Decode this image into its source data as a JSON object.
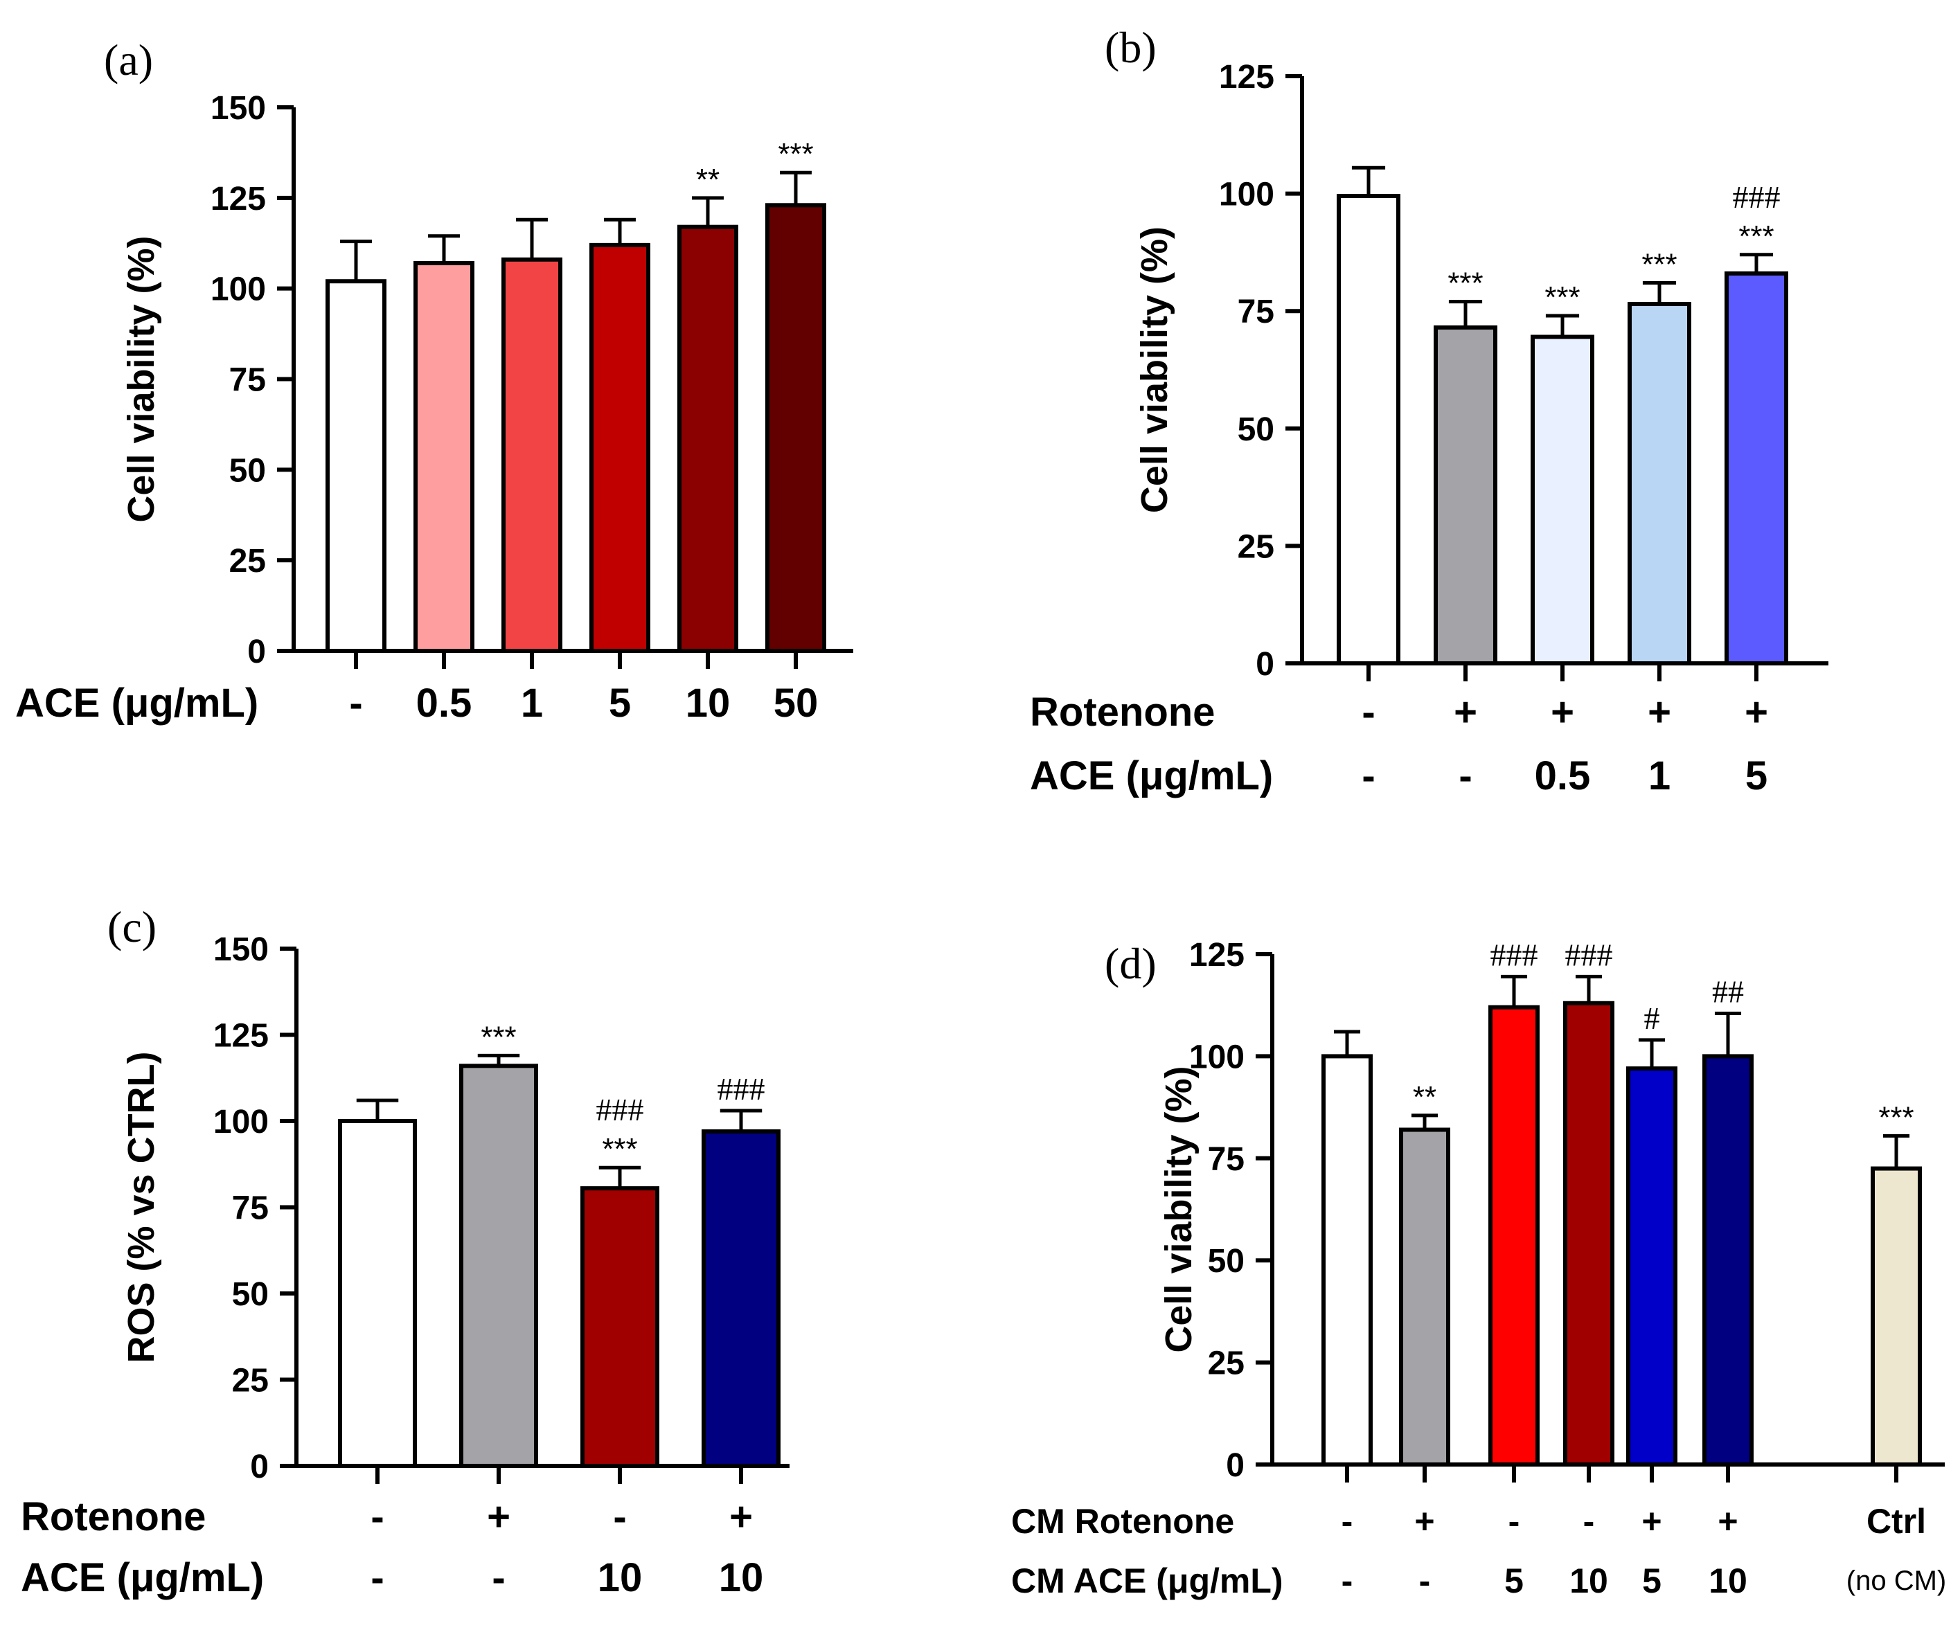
{
  "chart_data": [
    {
      "panel": "(a)",
      "type": "bar",
      "ylabel": "Cell viability (%)",
      "ylim": [
        0,
        150
      ],
      "yticks": [
        0,
        25,
        50,
        75,
        100,
        125,
        150
      ],
      "rows": [
        {
          "label": "ACE (μg/mL)",
          "values": [
            "-",
            "0.5",
            "1",
            "5",
            "10",
            "50"
          ]
        }
      ],
      "series": [
        {
          "name": "Cell viability",
          "values": [
            102,
            107,
            108,
            112,
            117,
            123
          ],
          "errors": [
            11,
            7.5,
            11,
            7,
            8,
            9
          ]
        }
      ],
      "colors": [
        "#ffffff",
        "#ff9e9e",
        "#f24444",
        "#c00000",
        "#8b0000",
        "#620000"
      ],
      "significance": [
        "",
        "",
        "",
        "",
        "**",
        "***"
      ],
      "hash_marks": [
        "",
        "",
        "",
        "",
        "",
        ""
      ]
    },
    {
      "panel": "(b)",
      "type": "bar",
      "ylabel": "Cell viability (%)",
      "ylim": [
        0,
        125
      ],
      "yticks": [
        0,
        25,
        50,
        75,
        100,
        125
      ],
      "rows": [
        {
          "label": "Rotenone",
          "values": [
            "-",
            "+",
            "+",
            "+",
            "+"
          ]
        },
        {
          "label": "ACE (μg/mL)",
          "values": [
            "-",
            "-",
            "0.5",
            "1",
            "5"
          ]
        }
      ],
      "series": [
        {
          "name": "Cell viability",
          "values": [
            99.5,
            71.5,
            69.5,
            76.5,
            83
          ],
          "errors": [
            6,
            5.5,
            4.5,
            4.5,
            4
          ]
        }
      ],
      "colors": [
        "#ffffff",
        "#a3a3a8",
        "#e9f0ff",
        "#bad6f5",
        "#5b5bff"
      ],
      "significance": [
        "",
        "***",
        "***",
        "***",
        "***"
      ],
      "hash_marks": [
        "",
        "",
        "",
        "",
        "###"
      ]
    },
    {
      "panel": "(c)",
      "type": "bar",
      "ylabel": "ROS (% vs CTRL)",
      "ylim": [
        0,
        150
      ],
      "yticks": [
        0,
        25,
        50,
        75,
        100,
        125,
        150
      ],
      "rows": [
        {
          "label": "Rotenone",
          "values": [
            "-",
            "+",
            "-",
            "+"
          ]
        },
        {
          "label": "ACE (μg/mL)",
          "values": [
            "-",
            "-",
            "10",
            "10"
          ]
        }
      ],
      "series": [
        {
          "name": "ROS",
          "values": [
            100,
            116,
            80.5,
            97
          ],
          "errors": [
            6,
            3,
            6,
            6
          ]
        }
      ],
      "colors": [
        "#ffffff",
        "#a3a3a8",
        "#a00000",
        "#000080"
      ],
      "significance": [
        "",
        "***",
        "***",
        ""
      ],
      "hash_marks": [
        "",
        "",
        "###",
        "###"
      ]
    },
    {
      "panel": "(d)",
      "type": "bar",
      "ylabel": "Cell viability (%)",
      "ylim": [
        0,
        125
      ],
      "yticks": [
        0,
        25,
        50,
        75,
        100,
        125
      ],
      "rows": [
        {
          "label": "CM Rotenone",
          "values": [
            "-",
            "+",
            "-",
            "-",
            "+",
            "+",
            "Ctrl"
          ]
        },
        {
          "label": "CM ACE (μg/mL)",
          "values": [
            "-",
            "-",
            "5",
            "10",
            "5",
            "10",
            ""
          ]
        }
      ],
      "ctrl_note": "(no CM)",
      "series": [
        {
          "name": "Cell viability",
          "values": [
            100,
            82,
            112,
            113,
            97,
            100,
            72.5
          ],
          "errors": [
            6,
            3.5,
            7.5,
            6.5,
            7,
            10.5,
            8
          ]
        }
      ],
      "colors": [
        "#ffffff",
        "#a3a3a8",
        "#ff0000",
        "#a00000",
        "#0000c8",
        "#000080",
        "#ede7cf"
      ],
      "significance": [
        "",
        "**",
        "",
        "",
        "",
        "",
        "***"
      ],
      "hash_marks": [
        "",
        "",
        "###",
        "###",
        "#",
        "##",
        ""
      ]
    }
  ]
}
